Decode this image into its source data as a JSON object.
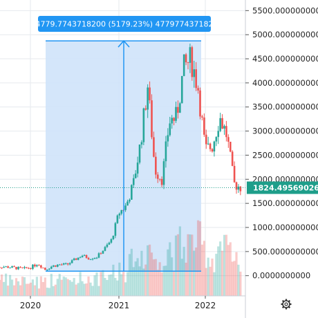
{
  "chart_data": {
    "type": "candlestick",
    "x_ticks": [
      "2020",
      "2021",
      "2022"
    ],
    "y_ticks": [
      "5500.0000000000",
      "5000.0000000000",
      "4500.0000000000",
      "4000.0000000000",
      "3500.0000000000",
      "3000.0000000000",
      "2500.0000000000",
      "2000.0000000000",
      "1500.0000000000",
      "1000.0000000000",
      "500.0000000000",
      "0.0000000000"
    ],
    "y_range": [
      -420,
      5720
    ],
    "last_price": "1824.4956902600",
    "measure": {
      "label": "4779.7743718200 (5179.23%) 477977437182",
      "from_value": 92.3,
      "to_value": 4872.1
    },
    "price_series": [
      [
        "2019-08",
        190
      ],
      [
        "2019-10",
        180
      ],
      [
        "2019-12",
        140
      ],
      [
        "2020-01",
        170
      ],
      [
        "2020-02",
        250
      ],
      [
        "2020-03",
        130
      ],
      [
        "2020-04",
        200
      ],
      [
        "2020-05",
        230
      ],
      [
        "2020-06",
        230
      ],
      [
        "2020-07",
        330
      ],
      [
        "2020-08",
        420
      ],
      [
        "2020-09",
        360
      ],
      [
        "2020-10",
        390
      ],
      [
        "2020-11",
        550
      ],
      [
        "2020-12",
        740
      ],
      [
        "2021-01",
        1300
      ],
      [
        "2021-02",
        1450
      ],
      [
        "2021-03",
        1900
      ],
      [
        "2021-04",
        2750
      ],
      [
        "2021-05",
        3950
      ],
      [
        "2021-06",
        2200
      ],
      [
        "2021-07",
        2000
      ],
      [
        "2021-08",
        3200
      ],
      [
        "2021-09",
        3300
      ],
      [
        "2021-10",
        4300
      ],
      [
        "2021-11",
        4500
      ],
      [
        "2021-12",
        3900
      ],
      [
        "2022-01",
        2600
      ],
      [
        "2022-02",
        2700
      ],
      [
        "2022-03",
        3300
      ],
      [
        "2022-04",
        2900
      ],
      [
        "2022-05",
        1900
      ],
      [
        "2022-06",
        1824
      ]
    ]
  },
  "colors": {
    "up": "#26a69a",
    "down": "#ef5350",
    "measure": "#2196f3",
    "measure_fill": "#cfe3fa",
    "grid": "#e6e9ee",
    "price_tag": "#1e9e8a"
  },
  "settings_icon": "gear-icon"
}
